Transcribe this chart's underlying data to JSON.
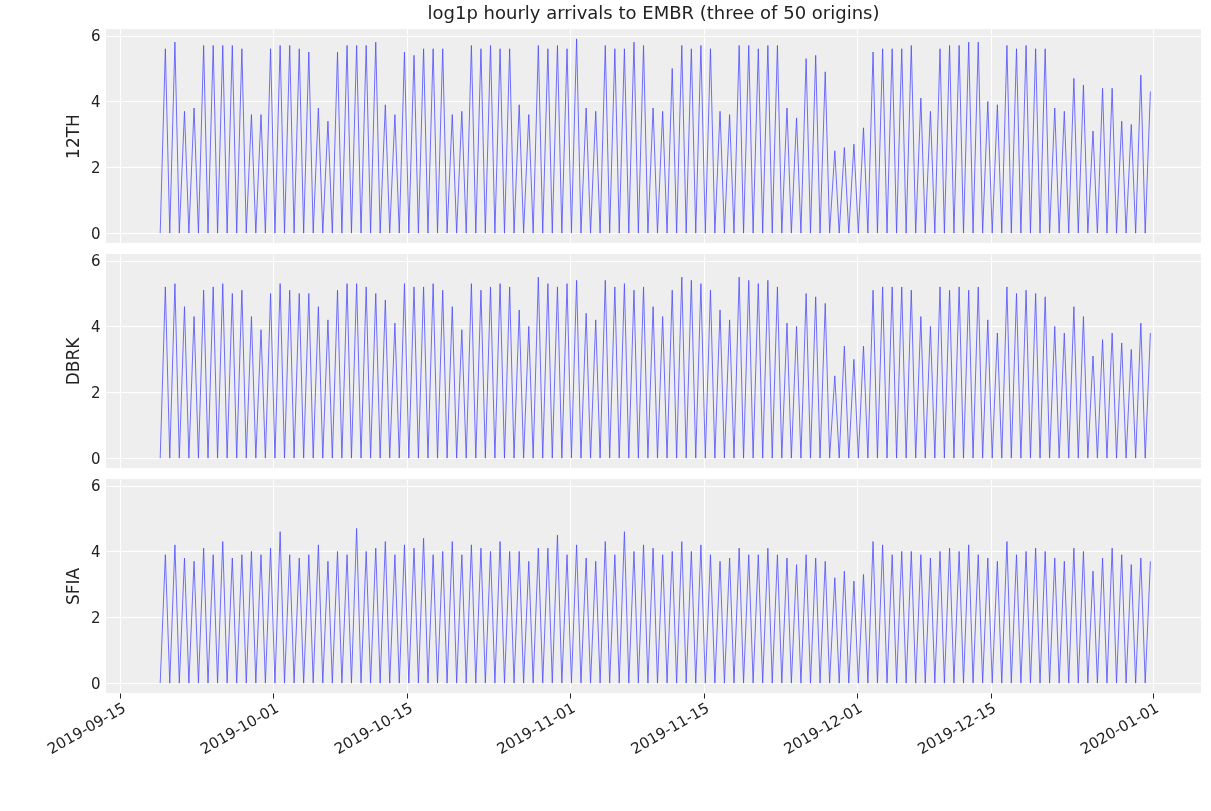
{
  "chart_data": [
    {
      "type": "line",
      "title": "log1p hourly arrivals to EMBR (three of 50 origins)",
      "ylabel": "12TH",
      "grid": true,
      "tick_labels": "y",
      "marker": "none",
      "line_style": "solid",
      "xlim": [
        "2019-09-13T12:00",
        "2020-01-06T00:00"
      ],
      "xticks": [
        "2019-09-15",
        "2019-10-01",
        "2019-10-15",
        "2019-11-01",
        "2019-11-15",
        "2019-12-01",
        "2019-12-15",
        "2020-01-01"
      ],
      "ylim": [
        -0.3,
        6.2
      ],
      "yticks": [
        0,
        2,
        4,
        6
      ],
      "x": [
        "2019-09-19T04:00",
        "2019-09-19T17:00",
        "2019-09-20T04:00",
        "2019-09-20T17:00",
        "2019-09-21T04:00",
        "2019-09-21T17:00",
        "2019-09-22T04:00",
        "2019-09-22T17:00",
        "2019-09-23T04:00",
        "2019-09-23T17:00",
        "2019-09-24T04:00",
        "2019-09-24T17:00",
        "2019-09-25T04:00",
        "2019-09-25T17:00",
        "2019-09-26T04:00",
        "2019-09-26T17:00",
        "2019-09-27T04:00",
        "2019-09-27T17:00",
        "2019-09-28T04:00",
        "2019-09-28T17:00",
        "2019-09-29T04:00",
        "2019-09-29T17:00",
        "2019-09-30T04:00",
        "2019-09-30T17:00",
        "2019-10-01T04:00",
        "2019-10-01T17:00",
        "2019-10-02T04:00",
        "2019-10-02T17:00",
        "2019-10-03T04:00",
        "2019-10-03T17:00",
        "2019-10-04T04:00",
        "2019-10-04T17:00",
        "2019-10-05T04:00",
        "2019-10-05T17:00",
        "2019-10-06T04:00",
        "2019-10-06T17:00",
        "2019-10-07T04:00",
        "2019-10-07T17:00",
        "2019-10-08T04:00",
        "2019-10-08T17:00",
        "2019-10-09T04:00",
        "2019-10-09T17:00",
        "2019-10-10T04:00",
        "2019-10-10T17:00",
        "2019-10-11T04:00",
        "2019-10-11T17:00",
        "2019-10-12T04:00",
        "2019-10-12T17:00",
        "2019-10-13T04:00",
        "2019-10-13T17:00",
        "2019-10-14T04:00",
        "2019-10-14T17:00",
        "2019-10-15T04:00",
        "2019-10-15T17:00",
        "2019-10-16T04:00",
        "2019-10-16T17:00",
        "2019-10-17T04:00",
        "2019-10-17T17:00",
        "2019-10-18T04:00",
        "2019-10-18T17:00",
        "2019-10-19T04:00",
        "2019-10-19T17:00",
        "2019-10-20T04:00",
        "2019-10-20T17:00",
        "2019-10-21T04:00",
        "2019-10-21T17:00",
        "2019-10-22T04:00",
        "2019-10-22T17:00",
        "2019-10-23T04:00",
        "2019-10-23T17:00",
        "2019-10-24T04:00",
        "2019-10-24T17:00",
        "2019-10-25T04:00",
        "2019-10-25T17:00",
        "2019-10-26T04:00",
        "2019-10-26T17:00",
        "2019-10-27T04:00",
        "2019-10-27T17:00",
        "2019-10-28T04:00",
        "2019-10-28T17:00",
        "2019-10-29T04:00",
        "2019-10-29T17:00",
        "2019-10-30T04:00",
        "2019-10-30T17:00",
        "2019-10-31T04:00",
        "2019-10-31T17:00",
        "2019-11-01T04:00",
        "2019-11-01T17:00",
        "2019-11-02T04:00",
        "2019-11-02T17:00",
        "2019-11-03T04:00",
        "2019-11-03T17:00",
        "2019-11-04T04:00",
        "2019-11-04T17:00",
        "2019-11-05T04:00",
        "2019-11-05T17:00",
        "2019-11-06T04:00",
        "2019-11-06T17:00",
        "2019-11-07T04:00",
        "2019-11-07T17:00",
        "2019-11-08T04:00",
        "2019-11-08T17:00",
        "2019-11-09T04:00",
        "2019-11-09T17:00",
        "2019-11-10T04:00",
        "2019-11-10T17:00",
        "2019-11-11T04:00",
        "2019-11-11T17:00",
        "2019-11-12T04:00",
        "2019-11-12T17:00",
        "2019-11-13T04:00",
        "2019-11-13T17:00",
        "2019-11-14T04:00",
        "2019-11-14T17:00",
        "2019-11-15T04:00",
        "2019-11-15T17:00",
        "2019-11-16T04:00",
        "2019-11-16T17:00",
        "2019-11-17T04:00",
        "2019-11-17T17:00",
        "2019-11-18T04:00",
        "2019-11-18T17:00",
        "2019-11-19T04:00",
        "2019-11-19T17:00",
        "2019-11-20T04:00",
        "2019-11-20T17:00",
        "2019-11-21T04:00",
        "2019-11-21T17:00",
        "2019-11-22T04:00",
        "2019-11-22T17:00",
        "2019-11-23T04:00",
        "2019-11-23T17:00",
        "2019-11-24T04:00",
        "2019-11-24T17:00",
        "2019-11-25T04:00",
        "2019-11-25T17:00",
        "2019-11-26T04:00",
        "2019-11-26T17:00",
        "2019-11-27T04:00",
        "2019-11-27T17:00",
        "2019-11-28T04:00",
        "2019-11-28T17:00",
        "2019-11-29T04:00",
        "2019-11-29T17:00",
        "2019-11-30T04:00",
        "2019-11-30T17:00",
        "2019-12-01T04:00",
        "2019-12-01T17:00",
        "2019-12-02T04:00",
        "2019-12-02T17:00",
        "2019-12-03T04:00",
        "2019-12-03T17:00",
        "2019-12-04T04:00",
        "2019-12-04T17:00",
        "2019-12-05T04:00",
        "2019-12-05T17:00",
        "2019-12-06T04:00",
        "2019-12-06T17:00",
        "2019-12-07T04:00",
        "2019-12-07T17:00",
        "2019-12-08T04:00",
        "2019-12-08T17:00",
        "2019-12-09T04:00",
        "2019-12-09T17:00",
        "2019-12-10T04:00",
        "2019-12-10T17:00",
        "2019-12-11T04:00",
        "2019-12-11T17:00",
        "2019-12-12T04:00",
        "2019-12-12T17:00",
        "2019-12-13T04:00",
        "2019-12-13T17:00",
        "2019-12-14T04:00",
        "2019-12-14T17:00",
        "2019-12-15T04:00",
        "2019-12-15T17:00",
        "2019-12-16T04:00",
        "2019-12-16T17:00",
        "2019-12-17T04:00",
        "2019-12-17T17:00",
        "2019-12-18T04:00",
        "2019-12-18T17:00",
        "2019-12-19T04:00",
        "2019-12-19T17:00",
        "2019-12-20T04:00",
        "2019-12-20T17:00",
        "2019-12-21T04:00",
        "2019-12-21T17:00",
        "2019-12-22T04:00",
        "2019-12-22T17:00",
        "2019-12-23T04:00",
        "2019-12-23T17:00",
        "2019-12-24T04:00",
        "2019-12-24T17:00",
        "2019-12-25T04:00",
        "2019-12-25T17:00",
        "2019-12-26T04:00",
        "2019-12-26T17:00",
        "2019-12-27T04:00",
        "2019-12-27T17:00",
        "2019-12-28T04:00",
        "2019-12-28T17:00",
        "2019-12-29T04:00",
        "2019-12-29T17:00",
        "2019-12-30T04:00",
        "2019-12-30T17:00",
        "2019-12-31T04:00",
        "2019-12-31T17:00"
      ],
      "series": [
        {
          "color": "#4d4dff",
          "values": [
            0,
            5.6,
            0,
            5.8,
            0,
            3.7,
            0,
            3.8,
            0,
            5.7,
            0,
            5.7,
            0,
            5.7,
            0,
            5.7,
            0,
            5.6,
            0,
            3.6,
            0,
            3.6,
            0,
            5.6,
            0,
            5.7,
            0,
            5.7,
            0,
            5.6,
            0,
            5.5,
            0,
            3.8,
            0,
            3.4,
            0,
            5.5,
            0,
            5.7,
            0,
            5.7,
            0,
            5.7,
            0,
            5.8,
            0,
            3.9,
            0,
            3.6,
            0,
            5.5,
            0,
            5.4,
            0,
            5.6,
            0,
            5.6,
            0,
            5.6,
            0,
            3.6,
            0,
            3.7,
            0,
            5.7,
            0,
            5.6,
            0,
            5.7,
            0,
            5.6,
            0,
            5.6,
            0,
            3.9,
            0,
            3.6,
            0,
            5.7,
            0,
            5.6,
            0,
            5.7,
            0,
            5.6,
            0,
            5.9,
            0,
            3.8,
            0,
            3.7,
            0,
            5.7,
            0,
            5.6,
            0,
            5.6,
            0,
            5.8,
            0,
            5.7,
            0,
            3.8,
            0,
            3.7,
            0,
            5.0,
            0,
            5.7,
            0,
            5.6,
            0,
            5.7,
            0,
            5.6,
            0,
            3.7,
            0,
            3.6,
            0,
            5.7,
            0,
            5.7,
            0,
            5.6,
            0,
            5.7,
            0,
            5.7,
            0,
            3.8,
            0,
            3.5,
            0,
            5.3,
            0,
            5.4,
            0,
            4.9,
            0,
            2.5,
            0,
            2.6,
            0,
            2.7,
            0,
            3.2,
            0,
            5.5,
            0,
            5.6,
            0,
            5.6,
            0,
            5.6,
            0,
            5.7,
            0,
            4.1,
            0,
            3.7,
            0,
            5.6,
            0,
            5.7,
            0,
            5.7,
            0,
            5.8,
            0,
            5.8,
            0,
            4.0,
            0,
            3.9,
            0,
            5.7,
            0,
            5.6,
            0,
            5.7,
            0,
            5.6,
            0,
            5.6,
            0,
            3.8,
            0,
            3.7,
            0,
            4.7,
            0,
            4.5,
            0,
            3.1,
            0,
            4.4,
            0,
            4.4,
            0,
            3.4,
            0,
            3.3,
            0,
            4.8,
            0,
            4.3
          ]
        }
      ]
    },
    {
      "type": "line",
      "ylabel": "DBRK",
      "grid": true,
      "tick_labels": "y",
      "marker": "none",
      "line_style": "solid",
      "xlim": [
        "2019-09-13T12:00",
        "2020-01-06T00:00"
      ],
      "xticks": [
        "2019-09-15",
        "2019-10-01",
        "2019-10-15",
        "2019-11-01",
        "2019-11-15",
        "2019-12-01",
        "2019-12-15",
        "2020-01-01"
      ],
      "ylim": [
        -0.3,
        6.2
      ],
      "yticks": [
        0,
        2,
        4,
        6
      ],
      "x": [
        "2019-09-19T04:00",
        "2019-09-19T17:00",
        "2019-09-20T04:00",
        "2019-09-20T17:00",
        "2019-09-21T04:00",
        "2019-09-21T17:00",
        "2019-09-22T04:00",
        "2019-09-22T17:00",
        "2019-09-23T04:00",
        "2019-09-23T17:00",
        "2019-09-24T04:00",
        "2019-09-24T17:00",
        "2019-09-25T04:00",
        "2019-09-25T17:00",
        "2019-09-26T04:00",
        "2019-09-26T17:00",
        "2019-09-27T04:00",
        "2019-09-27T17:00",
        "2019-09-28T04:00",
        "2019-09-28T17:00",
        "2019-09-29T04:00",
        "2019-09-29T17:00",
        "2019-09-30T04:00",
        "2019-09-30T17:00",
        "2019-10-01T04:00",
        "2019-10-01T17:00",
        "2019-10-02T04:00",
        "2019-10-02T17:00",
        "2019-10-03T04:00",
        "2019-10-03T17:00",
        "2019-10-04T04:00",
        "2019-10-04T17:00",
        "2019-10-05T04:00",
        "2019-10-05T17:00",
        "2019-10-06T04:00",
        "2019-10-06T17:00",
        "2019-10-07T04:00",
        "2019-10-07T17:00",
        "2019-10-08T04:00",
        "2019-10-08T17:00",
        "2019-10-09T04:00",
        "2019-10-09T17:00",
        "2019-10-10T04:00",
        "2019-10-10T17:00",
        "2019-10-11T04:00",
        "2019-10-11T17:00",
        "2019-10-12T04:00",
        "2019-10-12T17:00",
        "2019-10-13T04:00",
        "2019-10-13T17:00",
        "2019-10-14T04:00",
        "2019-10-14T17:00",
        "2019-10-15T04:00",
        "2019-10-15T17:00",
        "2019-10-16T04:00",
        "2019-10-16T17:00",
        "2019-10-17T04:00",
        "2019-10-17T17:00",
        "2019-10-18T04:00",
        "2019-10-18T17:00",
        "2019-10-19T04:00",
        "2019-10-19T17:00",
        "2019-10-20T04:00",
        "2019-10-20T17:00",
        "2019-10-21T04:00",
        "2019-10-21T17:00",
        "2019-10-22T04:00",
        "2019-10-22T17:00",
        "2019-10-23T04:00",
        "2019-10-23T17:00",
        "2019-10-24T04:00",
        "2019-10-24T17:00",
        "2019-10-25T04:00",
        "2019-10-25T17:00",
        "2019-10-26T04:00",
        "2019-10-26T17:00",
        "2019-10-27T04:00",
        "2019-10-27T17:00",
        "2019-10-28T04:00",
        "2019-10-28T17:00",
        "2019-10-29T04:00",
        "2019-10-29T17:00",
        "2019-10-30T04:00",
        "2019-10-30T17:00",
        "2019-10-31T04:00",
        "2019-10-31T17:00",
        "2019-11-01T04:00",
        "2019-11-01T17:00",
        "2019-11-02T04:00",
        "2019-11-02T17:00",
        "2019-11-03T04:00",
        "2019-11-03T17:00",
        "2019-11-04T04:00",
        "2019-11-04T17:00",
        "2019-11-05T04:00",
        "2019-11-05T17:00",
        "2019-11-06T04:00",
        "2019-11-06T17:00",
        "2019-11-07T04:00",
        "2019-11-07T17:00",
        "2019-11-08T04:00",
        "2019-11-08T17:00",
        "2019-11-09T04:00",
        "2019-11-09T17:00",
        "2019-11-10T04:00",
        "2019-11-10T17:00",
        "2019-11-11T04:00",
        "2019-11-11T17:00",
        "2019-11-12T04:00",
        "2019-11-12T17:00",
        "2019-11-13T04:00",
        "2019-11-13T17:00",
        "2019-11-14T04:00",
        "2019-11-14T17:00",
        "2019-11-15T04:00",
        "2019-11-15T17:00",
        "2019-11-16T04:00",
        "2019-11-16T17:00",
        "2019-11-17T04:00",
        "2019-11-17T17:00",
        "2019-11-18T04:00",
        "2019-11-18T17:00",
        "2019-11-19T04:00",
        "2019-11-19T17:00",
        "2019-11-20T04:00",
        "2019-11-20T17:00",
        "2019-11-21T04:00",
        "2019-11-21T17:00",
        "2019-11-22T04:00",
        "2019-11-22T17:00",
        "2019-11-23T04:00",
        "2019-11-23T17:00",
        "2019-11-24T04:00",
        "2019-11-24T17:00",
        "2019-11-25T04:00",
        "2019-11-25T17:00",
        "2019-11-26T04:00",
        "2019-11-26T17:00",
        "2019-11-27T04:00",
        "2019-11-27T17:00",
        "2019-11-28T04:00",
        "2019-11-28T17:00",
        "2019-11-29T04:00",
        "2019-11-29T17:00",
        "2019-11-30T04:00",
        "2019-11-30T17:00",
        "2019-12-01T04:00",
        "2019-12-01T17:00",
        "2019-12-02T04:00",
        "2019-12-02T17:00",
        "2019-12-03T04:00",
        "2019-12-03T17:00",
        "2019-12-04T04:00",
        "2019-12-04T17:00",
        "2019-12-05T04:00",
        "2019-12-05T17:00",
        "2019-12-06T04:00",
        "2019-12-06T17:00",
        "2019-12-07T04:00",
        "2019-12-07T17:00",
        "2019-12-08T04:00",
        "2019-12-08T17:00",
        "2019-12-09T04:00",
        "2019-12-09T17:00",
        "2019-12-10T04:00",
        "2019-12-10T17:00",
        "2019-12-11T04:00",
        "2019-12-11T17:00",
        "2019-12-12T04:00",
        "2019-12-12T17:00",
        "2019-12-13T04:00",
        "2019-12-13T17:00",
        "2019-12-14T04:00",
        "2019-12-14T17:00",
        "2019-12-15T04:00",
        "2019-12-15T17:00",
        "2019-12-16T04:00",
        "2019-12-16T17:00",
        "2019-12-17T04:00",
        "2019-12-17T17:00",
        "2019-12-18T04:00",
        "2019-12-18T17:00",
        "2019-12-19T04:00",
        "2019-12-19T17:00",
        "2019-12-20T04:00",
        "2019-12-20T17:00",
        "2019-12-21T04:00",
        "2019-12-21T17:00",
        "2019-12-22T04:00",
        "2019-12-22T17:00",
        "2019-12-23T04:00",
        "2019-12-23T17:00",
        "2019-12-24T04:00",
        "2019-12-24T17:00",
        "2019-12-25T04:00",
        "2019-12-25T17:00",
        "2019-12-26T04:00",
        "2019-12-26T17:00",
        "2019-12-27T04:00",
        "2019-12-27T17:00",
        "2019-12-28T04:00",
        "2019-12-28T17:00",
        "2019-12-29T04:00",
        "2019-12-29T17:00",
        "2019-12-30T04:00",
        "2019-12-30T17:00",
        "2019-12-31T04:00",
        "2019-12-31T17:00"
      ],
      "series": [
        {
          "color": "#4d4dff",
          "values": [
            0,
            5.2,
            0,
            5.3,
            0,
            4.6,
            0,
            4.3,
            0,
            5.1,
            0,
            5.2,
            0,
            5.3,
            0,
            5.0,
            0,
            5.1,
            0,
            4.3,
            0,
            3.9,
            0,
            5.0,
            0,
            5.3,
            0,
            5.1,
            0,
            5.0,
            0,
            5.0,
            0,
            4.6,
            0,
            4.2,
            0,
            5.1,
            0,
            5.3,
            0,
            5.3,
            0,
            5.2,
            0,
            5.0,
            0,
            4.8,
            0,
            4.1,
            0,
            5.3,
            0,
            5.2,
            0,
            5.2,
            0,
            5.3,
            0,
            5.1,
            0,
            4.6,
            0,
            3.9,
            0,
            5.3,
            0,
            5.1,
            0,
            5.2,
            0,
            5.3,
            0,
            5.2,
            0,
            4.5,
            0,
            4.0,
            0,
            5.5,
            0,
            5.3,
            0,
            5.2,
            0,
            5.3,
            0,
            5.4,
            0,
            4.4,
            0,
            4.2,
            0,
            5.4,
            0,
            5.2,
            0,
            5.3,
            0,
            5.1,
            0,
            5.2,
            0,
            4.6,
            0,
            4.3,
            0,
            5.1,
            0,
            5.5,
            0,
            5.4,
            0,
            5.3,
            0,
            5.1,
            0,
            4.5,
            0,
            4.2,
            0,
            5.5,
            0,
            5.4,
            0,
            5.3,
            0,
            5.4,
            0,
            5.2,
            0,
            4.1,
            0,
            4.0,
            0,
            5.0,
            0,
            4.9,
            0,
            4.7,
            0,
            2.5,
            0,
            3.4,
            0,
            3.0,
            0,
            3.4,
            0,
            5.1,
            0,
            5.2,
            0,
            5.2,
            0,
            5.2,
            0,
            5.1,
            0,
            4.3,
            0,
            4.0,
            0,
            5.2,
            0,
            5.1,
            0,
            5.2,
            0,
            5.1,
            0,
            5.2,
            0,
            4.2,
            0,
            3.8,
            0,
            5.2,
            0,
            5.0,
            0,
            5.1,
            0,
            5.0,
            0,
            4.9,
            0,
            4.0,
            0,
            3.8,
            0,
            4.6,
            0,
            4.3,
            0,
            3.1,
            0,
            3.6,
            0,
            3.8,
            0,
            3.5,
            0,
            3.3,
            0,
            4.1,
            0,
            3.8
          ]
        }
      ]
    },
    {
      "type": "line",
      "ylabel": "SFIA",
      "grid": true,
      "marker": "none",
      "line_style": "solid",
      "xlim": [
        "2019-09-13T12:00",
        "2020-01-06T00:00"
      ],
      "xticks": [
        "2019-09-15",
        "2019-10-01",
        "2019-10-15",
        "2019-11-01",
        "2019-11-15",
        "2019-12-01",
        "2019-12-15",
        "2020-01-01"
      ],
      "ylim": [
        -0.3,
        6.2
      ],
      "yticks": [
        0,
        2,
        4,
        6
      ],
      "x": [
        "2019-09-19T04:00",
        "2019-09-19T17:00",
        "2019-09-20T04:00",
        "2019-09-20T17:00",
        "2019-09-21T04:00",
        "2019-09-21T17:00",
        "2019-09-22T04:00",
        "2019-09-22T17:00",
        "2019-09-23T04:00",
        "2019-09-23T17:00",
        "2019-09-24T04:00",
        "2019-09-24T17:00",
        "2019-09-25T04:00",
        "2019-09-25T17:00",
        "2019-09-26T04:00",
        "2019-09-26T17:00",
        "2019-09-27T04:00",
        "2019-09-27T17:00",
        "2019-09-28T04:00",
        "2019-09-28T17:00",
        "2019-09-29T04:00",
        "2019-09-29T17:00",
        "2019-09-30T04:00",
        "2019-09-30T17:00",
        "2019-10-01T04:00",
        "2019-10-01T17:00",
        "2019-10-02T04:00",
        "2019-10-02T17:00",
        "2019-10-03T04:00",
        "2019-10-03T17:00",
        "2019-10-04T04:00",
        "2019-10-04T17:00",
        "2019-10-05T04:00",
        "2019-10-05T17:00",
        "2019-10-06T04:00",
        "2019-10-06T17:00",
        "2019-10-07T04:00",
        "2019-10-07T17:00",
        "2019-10-08T04:00",
        "2019-10-08T17:00",
        "2019-10-09T04:00",
        "2019-10-09T17:00",
        "2019-10-10T04:00",
        "2019-10-10T17:00",
        "2019-10-11T04:00",
        "2019-10-11T17:00",
        "2019-10-12T04:00",
        "2019-10-12T17:00",
        "2019-10-13T04:00",
        "2019-10-13T17:00",
        "2019-10-14T04:00",
        "2019-10-14T17:00",
        "2019-10-15T04:00",
        "2019-10-15T17:00",
        "2019-10-16T04:00",
        "2019-10-16T17:00",
        "2019-10-17T04:00",
        "2019-10-17T17:00",
        "2019-10-18T04:00",
        "2019-10-18T17:00",
        "2019-10-19T04:00",
        "2019-10-19T17:00",
        "2019-10-20T04:00",
        "2019-10-20T17:00",
        "2019-10-21T04:00",
        "2019-10-21T17:00",
        "2019-10-22T04:00",
        "2019-10-22T17:00",
        "2019-10-23T04:00",
        "2019-10-23T17:00",
        "2019-10-24T04:00",
        "2019-10-24T17:00",
        "2019-10-25T04:00",
        "2019-10-25T17:00",
        "2019-10-26T04:00",
        "2019-10-26T17:00",
        "2019-10-27T04:00",
        "2019-10-27T17:00",
        "2019-10-28T04:00",
        "2019-10-28T17:00",
        "2019-10-29T04:00",
        "2019-10-29T17:00",
        "2019-10-30T04:00",
        "2019-10-30T17:00",
        "2019-10-31T04:00",
        "2019-10-31T17:00",
        "2019-11-01T04:00",
        "2019-11-01T17:00",
        "2019-11-02T04:00",
        "2019-11-02T17:00",
        "2019-11-03T04:00",
        "2019-11-03T17:00",
        "2019-11-04T04:00",
        "2019-11-04T17:00",
        "2019-11-05T04:00",
        "2019-11-05T17:00",
        "2019-11-06T04:00",
        "2019-11-06T17:00",
        "2019-11-07T04:00",
        "2019-11-07T17:00",
        "2019-11-08T04:00",
        "2019-11-08T17:00",
        "2019-11-09T04:00",
        "2019-11-09T17:00",
        "2019-11-10T04:00",
        "2019-11-10T17:00",
        "2019-11-11T04:00",
        "2019-11-11T17:00",
        "2019-11-12T04:00",
        "2019-11-12T17:00",
        "2019-11-13T04:00",
        "2019-11-13T17:00",
        "2019-11-14T04:00",
        "2019-11-14T17:00",
        "2019-11-15T04:00",
        "2019-11-15T17:00",
        "2019-11-16T04:00",
        "2019-11-16T17:00",
        "2019-11-17T04:00",
        "2019-11-17T17:00",
        "2019-11-18T04:00",
        "2019-11-18T17:00",
        "2019-11-19T04:00",
        "2019-11-19T17:00",
        "2019-11-20T04:00",
        "2019-11-20T17:00",
        "2019-11-21T04:00",
        "2019-11-21T17:00",
        "2019-11-22T04:00",
        "2019-11-22T17:00",
        "2019-11-23T04:00",
        "2019-11-23T17:00",
        "2019-11-24T04:00",
        "2019-11-24T17:00",
        "2019-11-25T04:00",
        "2019-11-25T17:00",
        "2019-11-26T04:00",
        "2019-11-26T17:00",
        "2019-11-27T04:00",
        "2019-11-27T17:00",
        "2019-11-28T04:00",
        "2019-11-28T17:00",
        "2019-11-29T04:00",
        "2019-11-29T17:00",
        "2019-11-30T04:00",
        "2019-11-30T17:00",
        "2019-12-01T04:00",
        "2019-12-01T17:00",
        "2019-12-02T04:00",
        "2019-12-02T17:00",
        "2019-12-03T04:00",
        "2019-12-03T17:00",
        "2019-12-04T04:00",
        "2019-12-04T17:00",
        "2019-12-05T04:00",
        "2019-12-05T17:00",
        "2019-12-06T04:00",
        "2019-12-06T17:00",
        "2019-12-07T04:00",
        "2019-12-07T17:00",
        "2019-12-08T04:00",
        "2019-12-08T17:00",
        "2019-12-09T04:00",
        "2019-12-09T17:00",
        "2019-12-10T04:00",
        "2019-12-10T17:00",
        "2019-12-11T04:00",
        "2019-12-11T17:00",
        "2019-12-12T04:00",
        "2019-12-12T17:00",
        "2019-12-13T04:00",
        "2019-12-13T17:00",
        "2019-12-14T04:00",
        "2019-12-14T17:00",
        "2019-12-15T04:00",
        "2019-12-15T17:00",
        "2019-12-16T04:00",
        "2019-12-16T17:00",
        "2019-12-17T04:00",
        "2019-12-17T17:00",
        "2019-12-18T04:00",
        "2019-12-18T17:00",
        "2019-12-19T04:00",
        "2019-12-19T17:00",
        "2019-12-20T04:00",
        "2019-12-20T17:00",
        "2019-12-21T04:00",
        "2019-12-21T17:00",
        "2019-12-22T04:00",
        "2019-12-22T17:00",
        "2019-12-23T04:00",
        "2019-12-23T17:00",
        "2019-12-24T04:00",
        "2019-12-24T17:00",
        "2019-12-25T04:00",
        "2019-12-25T17:00",
        "2019-12-26T04:00",
        "2019-12-26T17:00",
        "2019-12-27T04:00",
        "2019-12-27T17:00",
        "2019-12-28T04:00",
        "2019-12-28T17:00",
        "2019-12-29T04:00",
        "2019-12-29T17:00",
        "2019-12-30T04:00",
        "2019-12-30T17:00",
        "2019-12-31T04:00",
        "2019-12-31T17:00"
      ],
      "series": [
        {
          "color": "#4d4dff",
          "values": [
            0,
            3.9,
            0,
            4.2,
            0,
            3.8,
            0,
            3.7,
            0,
            4.1,
            0,
            3.9,
            0,
            4.3,
            0,
            3.8,
            0,
            3.9,
            0,
            4.0,
            0,
            3.9,
            0,
            4.1,
            0,
            4.6,
            0,
            3.9,
            0,
            3.8,
            0,
            3.9,
            0,
            4.2,
            0,
            3.7,
            0,
            4.0,
            0,
            3.9,
            0,
            4.7,
            0,
            4.0,
            0,
            4.1,
            0,
            4.3,
            0,
            3.9,
            0,
            4.2,
            0,
            4.1,
            0,
            4.4,
            0,
            3.9,
            0,
            4.0,
            0,
            4.3,
            0,
            3.9,
            0,
            4.2,
            0,
            4.1,
            0,
            4.0,
            0,
            4.3,
            0,
            4.0,
            0,
            4.0,
            0,
            3.7,
            0,
            4.1,
            0,
            4.1,
            0,
            4.5,
            0,
            3.9,
            0,
            4.2,
            0,
            3.8,
            0,
            3.7,
            0,
            4.3,
            0,
            3.9,
            0,
            4.6,
            0,
            4.0,
            0,
            4.2,
            0,
            4.1,
            0,
            3.9,
            0,
            4.0,
            0,
            4.3,
            0,
            4.0,
            0,
            4.2,
            0,
            3.9,
            0,
            3.7,
            0,
            3.8,
            0,
            4.1,
            0,
            3.9,
            0,
            3.9,
            0,
            4.1,
            0,
            3.9,
            0,
            3.8,
            0,
            3.6,
            0,
            3.9,
            0,
            3.8,
            0,
            3.7,
            0,
            3.2,
            0,
            3.4,
            0,
            3.1,
            0,
            3.3,
            0,
            4.3,
            0,
            4.2,
            0,
            3.9,
            0,
            4.0,
            0,
            4.0,
            0,
            3.9,
            0,
            3.8,
            0,
            4.0,
            0,
            4.1,
            0,
            4.0,
            0,
            4.2,
            0,
            3.9,
            0,
            3.8,
            0,
            3.7,
            0,
            4.3,
            0,
            3.9,
            0,
            4.0,
            0,
            4.1,
            0,
            4.0,
            0,
            3.8,
            0,
            3.7,
            0,
            4.1,
            0,
            4.0,
            0,
            3.4,
            0,
            3.8,
            0,
            4.1,
            0,
            3.9,
            0,
            3.6,
            0,
            3.8,
            0,
            3.7
          ]
        }
      ]
    }
  ]
}
